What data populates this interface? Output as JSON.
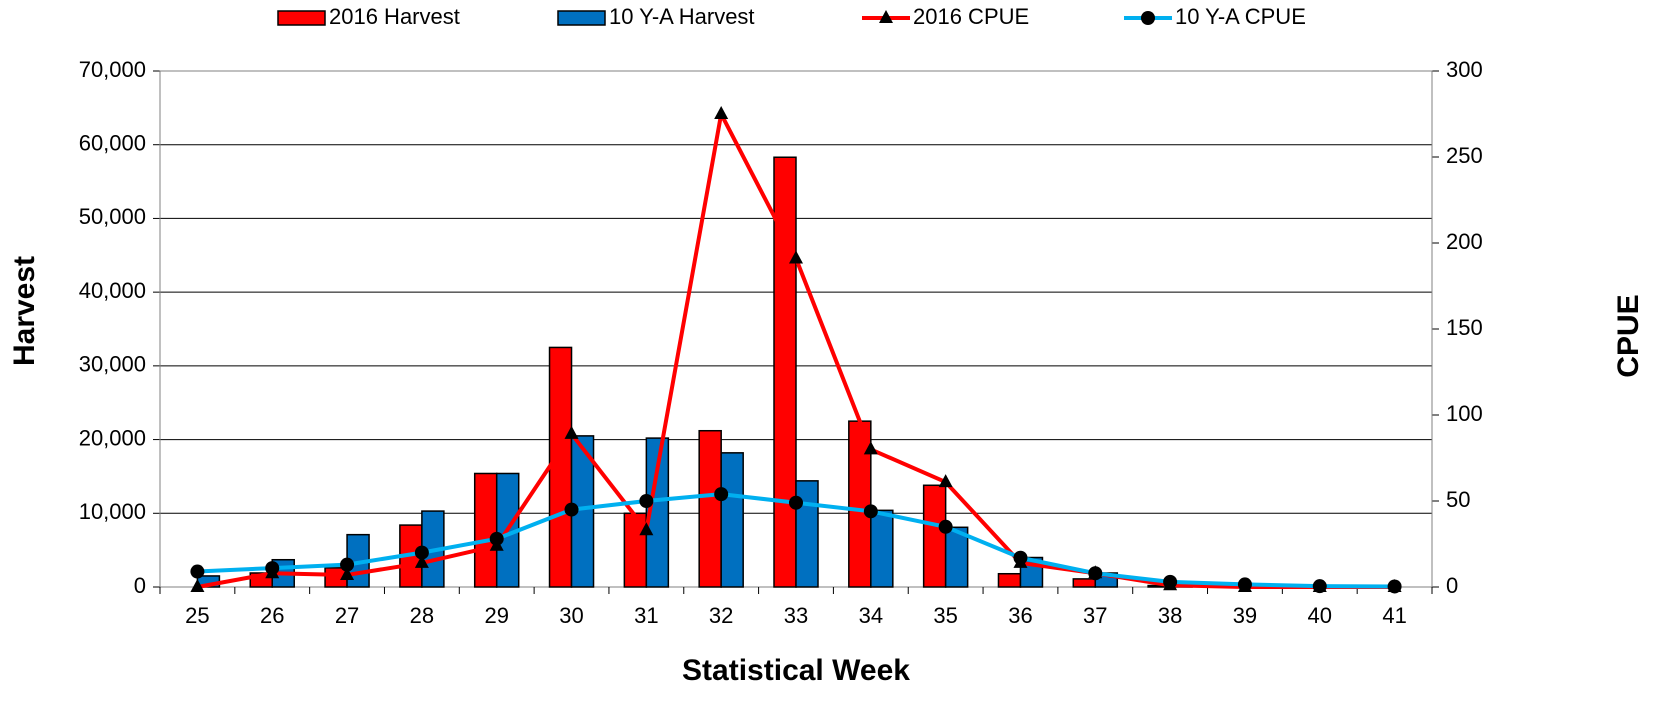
{
  "chart_data": {
    "type": "bar",
    "x_label": "Statistical Week",
    "y_label": "Harvest",
    "y2_label": "CPUE",
    "categories": [
      "25",
      "26",
      "27",
      "28",
      "29",
      "30",
      "31",
      "32",
      "33",
      "34",
      "35",
      "36",
      "37",
      "38",
      "39",
      "40",
      "41"
    ],
    "series": [
      {
        "name": "2016 Harvest",
        "type": "bar",
        "color": "#ff0000",
        "values": [
          0,
          1900,
          2600,
          8400,
          15400,
          32500,
          10000,
          21200,
          58300,
          22500,
          13800,
          1800,
          1100,
          200,
          0,
          0,
          0
        ]
      },
      {
        "name": "10 Y-A Harvest",
        "type": "bar",
        "color": "#0070c0",
        "values": [
          1500,
          3700,
          7100,
          10300,
          15400,
          20500,
          20200,
          18200,
          14400,
          10400,
          8100,
          4000,
          1900,
          600,
          300,
          100,
          0
        ]
      },
      {
        "name": "2016 CPUE",
        "type": "line",
        "marker": "triangle",
        "axis": "y2",
        "color": "#ff0000",
        "values": [
          0,
          8,
          7,
          14,
          24,
          89,
          33,
          275,
          191,
          80,
          61,
          14,
          8,
          1,
          0,
          0,
          0
        ]
      },
      {
        "name": "10 Y-A CPUE",
        "type": "line",
        "marker": "circle",
        "axis": "y2",
        "color": "#00b0f0",
        "values": [
          9,
          11,
          13,
          20,
          28,
          45,
          50,
          54,
          49,
          44,
          35,
          17,
          8,
          3,
          1.5,
          0.5,
          0.3
        ]
      }
    ],
    "ylim": [
      0,
      70000
    ],
    "yticks": [
      0,
      {
        "value": 10000,
        "label": "10,000"
      },
      {
        "value": 20000,
        "label": "20,000"
      },
      {
        "value": 30000,
        "label": "30,000"
      },
      {
        "value": 40000,
        "label": "40,000"
      },
      {
        "value": 50000,
        "label": "50,000"
      },
      {
        "value": 60000,
        "label": "60,000"
      },
      {
        "value": 70000,
        "label": "70,000"
      }
    ],
    "y2lim": [
      0,
      300
    ],
    "y2ticks": [
      0,
      50,
      100,
      150,
      200,
      250,
      300
    ],
    "grid": true,
    "legend": "top"
  }
}
